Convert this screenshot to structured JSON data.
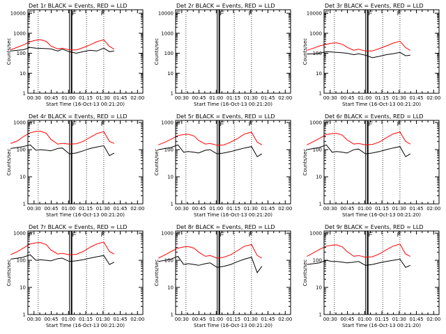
{
  "figure": {
    "x_tick_labels": [
      "00:30",
      "00:45",
      "01:00",
      "01:15",
      "01:30",
      "01:45",
      "02:00"
    ],
    "x_axis_label": "Start Time (16-Oct-13 00:21:20)",
    "y_axis_label": "Counts/sec",
    "y_tick_labels": [
      "1",
      "10",
      "100",
      "1000"
    ],
    "colors": {
      "events": "#000000",
      "lld": "#ff0000",
      "axes": "#000000"
    }
  },
  "chart_data": [
    {
      "type": "line",
      "title": "Det 1r BLACK = Events, RED = LLD",
      "data": true,
      "xlim_min": [
        9,
        99
      ],
      "ylim": [
        1,
        15000
      ],
      "y_scale": "log",
      "x_min": [
        9,
        15,
        20,
        26,
        31,
        35,
        40,
        44,
        50,
        54,
        60,
        66,
        72,
        78,
        84,
        90,
        95,
        99
      ],
      "series": [
        {
          "name": "Events",
          "color": "#000000",
          "values": [
            130,
            140,
            150,
            195,
            180,
            175,
            170,
            165,
            130,
            160,
            120,
            100,
            120,
            140,
            130,
            180,
            120,
            130
          ]
        },
        {
          "name": "LLD",
          "color": "#ff0000",
          "values": [
            150,
            200,
            260,
            380,
            450,
            480,
            390,
            230,
            165,
            180,
            150,
            145,
            190,
            260,
            380,
            470,
            220,
            160
          ]
        }
      ]
    },
    {
      "type": "line",
      "title": "Det 2r BLACK = Events, RED = LLD",
      "data": false,
      "xlim_min": [
        9,
        99
      ],
      "ylim": [
        1,
        15000
      ],
      "y_scale": "log",
      "x_min": [],
      "series": []
    },
    {
      "type": "line",
      "title": "Det 3r BLACK = Events, RED = LLD",
      "data": true,
      "xlim_min": [
        9,
        99
      ],
      "ylim": [
        1,
        15000
      ],
      "y_scale": "log",
      "x_min": [
        9,
        15,
        20,
        26,
        31,
        35,
        40,
        44,
        50,
        54,
        60,
        66,
        72,
        78,
        84,
        90,
        95,
        99
      ],
      "series": [
        {
          "name": "Events",
          "color": "#000000",
          "values": [
            90,
            95,
            100,
            120,
            115,
            110,
            105,
            100,
            85,
            95,
            80,
            60,
            70,
            85,
            95,
            110,
            75,
            80
          ]
        },
        {
          "name": "LLD",
          "color": "#ff0000",
          "values": [
            140,
            180,
            230,
            280,
            320,
            330,
            280,
            200,
            140,
            160,
            130,
            130,
            170,
            230,
            320,
            400,
            190,
            140
          ]
        }
      ]
    },
    {
      "type": "line",
      "title": "Det 4r BLACK = Events, RED = LLD",
      "data": true,
      "xlim_min": [
        9,
        99
      ],
      "ylim": [
        1,
        1200
      ],
      "y_scale": "log",
      "x_min": [
        9,
        15,
        20,
        26,
        31,
        35,
        40,
        44,
        50,
        54,
        60,
        66,
        72,
        78,
        84,
        90,
        95,
        99
      ],
      "series": [
        {
          "name": "Events",
          "color": "#000000",
          "values": [
            110,
            120,
            130,
            150,
            95,
            100,
            95,
            90,
            110,
            115,
            70,
            75,
            90,
            110,
            125,
            140,
            60,
            75
          ]
        },
        {
          "name": "LLD",
          "color": "#ff0000",
          "values": [
            170,
            210,
            300,
            420,
            470,
            480,
            400,
            240,
            160,
            170,
            160,
            165,
            200,
            280,
            390,
            460,
            200,
            170
          ]
        }
      ]
    },
    {
      "type": "line",
      "title": "Det 5r BLACK = Events, RED = LLD",
      "data": true,
      "xlim_min": [
        9,
        99
      ],
      "ylim": [
        1,
        1200
      ],
      "y_scale": "log",
      "x_min": [
        9,
        15,
        20,
        26,
        31,
        35,
        40,
        44,
        50,
        54,
        60,
        66,
        72,
        78,
        84,
        90,
        95,
        99
      ],
      "series": [
        {
          "name": "Events",
          "color": "#000000",
          "values": [
            100,
            110,
            120,
            150,
            80,
            85,
            80,
            75,
            95,
            100,
            70,
            75,
            85,
            100,
            115,
            130,
            55,
            70
          ]
        },
        {
          "name": "LLD",
          "color": "#ff0000",
          "values": [
            150,
            190,
            240,
            330,
            360,
            370,
            320,
            220,
            160,
            170,
            145,
            150,
            190,
            260,
            380,
            440,
            190,
            150
          ]
        }
      ]
    },
    {
      "type": "line",
      "title": "Det 6r BLACK = Events, RED = LLD",
      "data": true,
      "xlim_min": [
        9,
        99
      ],
      "ylim": [
        1,
        1200
      ],
      "y_scale": "log",
      "x_min": [
        9,
        15,
        20,
        26,
        31,
        35,
        40,
        44,
        50,
        54,
        60,
        66,
        72,
        78,
        84,
        90,
        95,
        99
      ],
      "series": [
        {
          "name": "Events",
          "color": "#000000",
          "values": [
            100,
            110,
            120,
            150,
            80,
            85,
            80,
            75,
            100,
            105,
            70,
            75,
            85,
            100,
            115,
            130,
            55,
            70
          ]
        },
        {
          "name": "LLD",
          "color": "#ff0000",
          "values": [
            150,
            200,
            260,
            360,
            390,
            400,
            340,
            230,
            160,
            170,
            150,
            155,
            190,
            270,
            380,
            450,
            200,
            160
          ]
        }
      ]
    },
    {
      "type": "line",
      "title": "Det 7r BLACK = Events, RED = LLD",
      "data": true,
      "xlim_min": [
        9,
        99
      ],
      "ylim": [
        1,
        1200
      ],
      "y_scale": "log",
      "x_min": [
        9,
        15,
        20,
        26,
        31,
        35,
        40,
        44,
        50,
        54,
        60,
        66,
        72,
        78,
        84,
        90,
        95,
        99
      ],
      "series": [
        {
          "name": "Events",
          "color": "#000000",
          "values": [
            110,
            120,
            130,
            160,
            100,
            105,
            100,
            95,
            115,
            120,
            90,
            95,
            105,
            120,
            135,
            150,
            70,
            85
          ]
        },
        {
          "name": "LLD",
          "color": "#ff0000",
          "values": [
            160,
            210,
            280,
            400,
            440,
            450,
            380,
            240,
            170,
            180,
            160,
            165,
            210,
            300,
            400,
            470,
            210,
            170
          ]
        }
      ]
    },
    {
      "type": "line",
      "title": "Det 8r BLACK = Events, RED = LLD",
      "data": true,
      "xlim_min": [
        9,
        99
      ],
      "ylim": [
        1,
        1200
      ],
      "y_scale": "log",
      "x_min": [
        9,
        15,
        20,
        26,
        31,
        35,
        40,
        44,
        50,
        54,
        60,
        66,
        72,
        78,
        84,
        90,
        95,
        99
      ],
      "series": [
        {
          "name": "Events",
          "color": "#000000",
          "values": [
            90,
            100,
            110,
            140,
            70,
            75,
            70,
            65,
            75,
            80,
            55,
            60,
            70,
            90,
            110,
            130,
            35,
            60
          ]
        },
        {
          "name": "LLD",
          "color": "#ff0000",
          "values": [
            120,
            160,
            210,
            280,
            310,
            320,
            280,
            200,
            140,
            150,
            120,
            130,
            160,
            230,
            330,
            380,
            150,
            120
          ]
        }
      ]
    },
    {
      "type": "line",
      "title": "Det 9r BLACK = Events, RED = LLD",
      "data": true,
      "xlim_min": [
        9,
        99
      ],
      "ylim": [
        1,
        1200
      ],
      "y_scale": "log",
      "x_min": [
        9,
        15,
        20,
        26,
        31,
        35,
        40,
        44,
        50,
        54,
        60,
        66,
        72,
        78,
        84,
        90,
        95,
        99
      ],
      "series": [
        {
          "name": "Events",
          "color": "#000000",
          "values": [
            70,
            75,
            80,
            100,
            90,
            90,
            85,
            80,
            85,
            90,
            65,
            70,
            80,
            90,
            100,
            110,
            55,
            65
          ]
        },
        {
          "name": "LLD",
          "color": "#ff0000",
          "values": [
            140,
            190,
            250,
            330,
            360,
            370,
            310,
            210,
            140,
            150,
            130,
            135,
            170,
            240,
            330,
            400,
            170,
            140
          ]
        }
      ]
    }
  ]
}
